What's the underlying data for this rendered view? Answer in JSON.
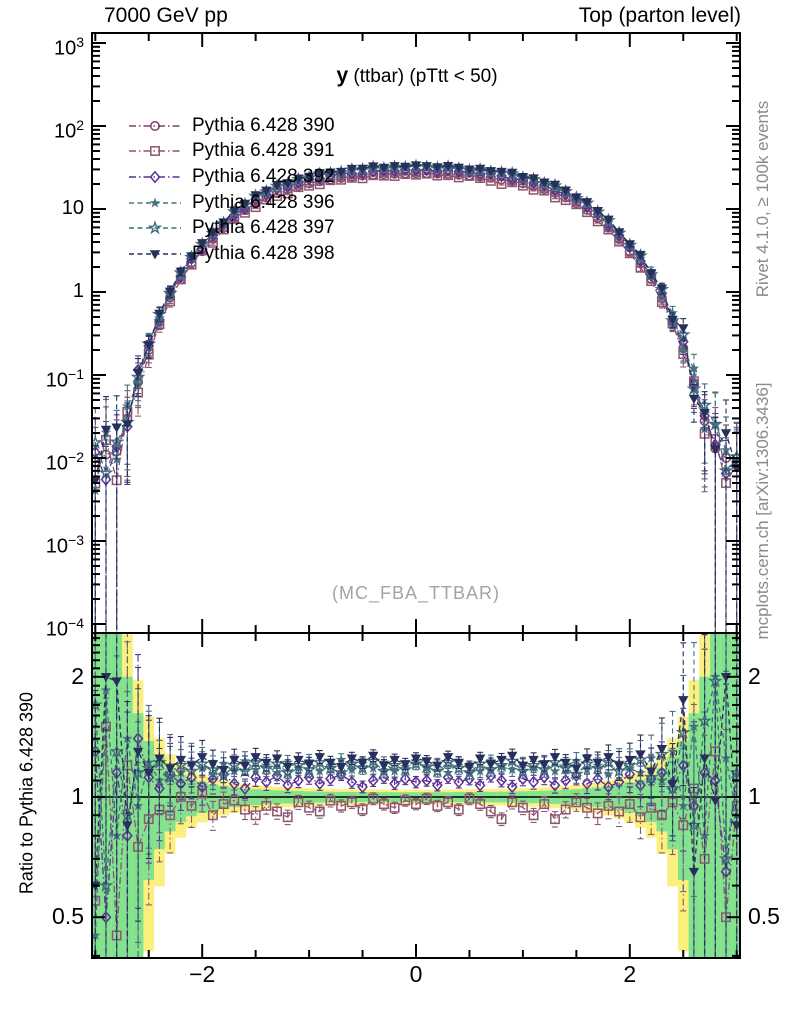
{
  "header": {
    "left": "7000 GeV pp",
    "right": "Top (parton level)"
  },
  "title": {
    "y": "y",
    "rest": " (ttbar)  (pTtt < 50)"
  },
  "watermark": "(MC_FBA_TTBAR)",
  "captions": {
    "rivet": "Rivet 4.1.0, ≥ 100k events",
    "mcplots": "mcplots.cern.ch [arXiv:1306.3436]"
  },
  "ratio_ylabel": "Ratio to Pythia 6.428 390",
  "colors": {
    "frame": "#000000",
    "band_yellow": "#fbf07d",
    "band_green": "#82e28d",
    "caption_gray": "#8a8a8a",
    "watermark_gray": "#a4a4a4"
  },
  "chart_data": {
    "type": "scatter",
    "title": "y (ttbar) (pTtt < 50)",
    "xlabel": "",
    "ylabel_main": "",
    "ylabel_ratio": "Ratio to Pythia 6.428 390",
    "legend_position": "top-left",
    "grid": false,
    "axes": {
      "x": {
        "lim": [
          -3.03,
          3.03
        ],
        "ticks": [
          {
            "v": -2,
            "label": "−2"
          },
          {
            "v": 0,
            "label": "0"
          },
          {
            "v": 2,
            "label": "2"
          }
        ],
        "minor_step": 0.5
      },
      "main_y": {
        "scale": "log",
        "lim_log10": [
          -4.11,
          3.13
        ],
        "ticks": [
          {
            "v": 1000,
            "mant": "10",
            "exp": "3"
          },
          {
            "v": 100,
            "mant": "10",
            "exp": "2"
          },
          {
            "v": 10,
            "mant": "10",
            "exp": ""
          },
          {
            "v": 1,
            "mant": "1",
            "exp": ""
          },
          {
            "v": 0.1,
            "mant": "10",
            "exp": "−1"
          },
          {
            "v": 0.01,
            "mant": "10",
            "exp": "−2"
          },
          {
            "v": 0.001,
            "mant": "10",
            "exp": "−3"
          },
          {
            "v": 0.0001,
            "mant": "10",
            "exp": "−4"
          }
        ]
      },
      "ratio_y": {
        "scale": "log",
        "lim": [
          0.395,
          2.57
        ],
        "ticks": [
          {
            "v": 2,
            "label": "2"
          },
          {
            "v": 1,
            "label": "1"
          },
          {
            "v": 0.5,
            "label": "0.5"
          }
        ],
        "minor": [
          0.4,
          0.6,
          0.7,
          0.8,
          0.9,
          1.1,
          1.2,
          1.3,
          1.4,
          1.5,
          1.6,
          1.7,
          1.8,
          1.9,
          2.1,
          2.2,
          2.3,
          2.4,
          2.5
        ]
      }
    },
    "bands": {
      "yellow_scale": 1.55
    },
    "x": [
      -3.0,
      -2.9,
      -2.8,
      -2.7,
      -2.6,
      -2.5,
      -2.4,
      -2.3,
      -2.2,
      -2.1,
      -2.0,
      -1.9,
      -1.8,
      -1.7,
      -1.6,
      -1.5,
      -1.4,
      -1.3,
      -1.2,
      -1.1,
      -1.0,
      -0.9,
      -0.8,
      -0.7,
      -0.6,
      -0.5,
      -0.4,
      -0.3,
      -0.2,
      -0.1,
      0.0,
      0.1,
      0.2,
      0.3,
      0.4,
      0.5,
      0.6,
      0.7,
      0.8,
      0.9,
      1.0,
      1.1,
      1.2,
      1.3,
      1.4,
      1.5,
      1.6,
      1.7,
      1.8,
      1.9,
      2.0,
      2.1,
      2.2,
      2.3,
      2.4,
      2.5,
      2.6,
      2.7,
      2.8,
      2.9,
      3.0
    ],
    "base_values": [
      0.009,
      0.011,
      0.012,
      0.03,
      0.082,
      0.2,
      0.44,
      0.86,
      1.42,
      2.25,
      3.1,
      4.35,
      5.9,
      7.75,
      9.7,
      11.7,
      13.7,
      15.6,
      17.3,
      18.9,
      20.3,
      21.6,
      22.7,
      23.7,
      24.5,
      25.2,
      25.8,
      26.3,
      26.6,
      26.85,
      27.0,
      26.9,
      26.65,
      26.35,
      25.85,
      25.25,
      24.55,
      23.75,
      22.75,
      21.65,
      20.35,
      18.95,
      17.35,
      15.65,
      13.75,
      11.75,
      9.75,
      7.8,
      5.95,
      4.4,
      3.05,
      2.2,
      1.44,
      0.84,
      0.43,
      0.21,
      0.08,
      0.028,
      0.013,
      0.01,
      0.009
    ],
    "rel_err": [
      1.6,
      1.5,
      1.4,
      0.8,
      0.48,
      0.3,
      0.2,
      0.15,
      0.11,
      0.09,
      0.077,
      0.064,
      0.055,
      0.048,
      0.043,
      0.039,
      0.036,
      0.034,
      0.032,
      0.031,
      0.03,
      0.029,
      0.028,
      0.027,
      0.027,
      0.026,
      0.026,
      0.026,
      0.025,
      0.025,
      0.025,
      0.025,
      0.025,
      0.026,
      0.026,
      0.026,
      0.027,
      0.027,
      0.028,
      0.029,
      0.03,
      0.031,
      0.032,
      0.034,
      0.036,
      0.039,
      0.043,
      0.048,
      0.055,
      0.064,
      0.077,
      0.09,
      0.11,
      0.15,
      0.2,
      0.3,
      0.48,
      0.8,
      1.4,
      1.5,
      1.6
    ],
    "band_green": [
      1.6,
      1.6,
      1.6,
      1.0,
      0.62,
      0.38,
      0.26,
      0.18,
      0.135,
      0.105,
      0.088,
      0.075,
      0.065,
      0.057,
      0.051,
      0.046,
      0.042,
      0.039,
      0.037,
      0.035,
      0.033,
      0.032,
      0.031,
      0.03,
      0.03,
      0.029,
      0.029,
      0.028,
      0.028,
      0.028,
      0.028,
      0.028,
      0.028,
      0.028,
      0.029,
      0.029,
      0.03,
      0.03,
      0.031,
      0.032,
      0.033,
      0.035,
      0.037,
      0.039,
      0.042,
      0.046,
      0.051,
      0.057,
      0.065,
      0.075,
      0.088,
      0.105,
      0.135,
      0.18,
      0.26,
      0.38,
      0.62,
      1.0,
      1.6,
      1.6,
      1.6
    ],
    "series": [
      {
        "name": "Pythia 6.428 390",
        "color": "#7c4268",
        "marker": "circle",
        "dash": "dashdot",
        "in_ratio": false,
        "ratio": [
          1,
          1,
          1,
          1,
          1,
          1,
          1,
          1,
          1,
          1,
          1,
          1,
          1,
          1,
          1,
          1,
          1,
          1,
          1,
          1,
          1,
          1,
          1,
          1,
          1,
          1,
          1,
          1,
          1,
          1,
          1,
          1,
          1,
          1,
          1,
          1,
          1,
          1,
          1,
          1,
          1,
          1,
          1,
          1,
          1,
          1,
          1,
          1,
          1,
          1,
          1,
          1,
          1,
          1,
          1,
          1,
          1,
          1,
          1,
          1,
          1
        ]
      },
      {
        "name": "Pythia 6.428 391",
        "color": "#8d5570",
        "marker": "square",
        "dash": "dashdot",
        "in_ratio": true,
        "ratio": [
          0.55,
          1.5,
          0.45,
          1.2,
          0.75,
          0.88,
          0.93,
          0.9,
          1.0,
          0.95,
          1.02,
          0.9,
          0.96,
          0.98,
          0.93,
          0.9,
          0.95,
          0.92,
          0.89,
          0.97,
          0.94,
          0.92,
          0.98,
          0.95,
          0.97,
          0.93,
          0.99,
          0.96,
          0.94,
          0.98,
          0.96,
          0.99,
          0.95,
          0.97,
          0.93,
          0.99,
          0.96,
          0.92,
          0.88,
          0.97,
          0.94,
          0.9,
          0.96,
          0.88,
          0.93,
          0.97,
          0.94,
          0.91,
          0.95,
          0.92,
          0.96,
          0.89,
          0.94,
          0.9,
          0.97,
          0.85,
          1.05,
          0.7,
          1.3,
          0.5,
          0.95
        ]
      },
      {
        "name": "Pythia 6.428 392",
        "color": "#5b2f95",
        "marker": "diamond",
        "dash": "dashdot",
        "in_ratio": true,
        "ratio": [
          1.3,
          0.5,
          1.15,
          0.8,
          1.4,
          1.12,
          1.05,
          1.14,
          1.08,
          1.12,
          1.06,
          1.11,
          1.14,
          1.08,
          1.05,
          1.12,
          1.09,
          1.13,
          1.07,
          1.1,
          1.12,
          1.08,
          1.11,
          1.14,
          1.09,
          1.06,
          1.1,
          1.12,
          1.08,
          1.11,
          1.09,
          1.1,
          1.07,
          1.12,
          1.09,
          1.11,
          1.07,
          1.13,
          1.1,
          1.06,
          1.11,
          1.09,
          1.12,
          1.07,
          1.1,
          1.13,
          1.08,
          1.11,
          1.06,
          1.09,
          1.14,
          1.07,
          1.11,
          1.15,
          1.05,
          1.2,
          0.95,
          1.15,
          1.1,
          0.65,
          1.12
        ]
      },
      {
        "name": "Pythia 6.428 396",
        "color": "#46717f",
        "marker": "star",
        "dash": "dashed",
        "in_ratio": true,
        "ratio": [
          0.45,
          1.85,
          0.8,
          1.4,
          0.95,
          1.22,
          1.1,
          1.2,
          1.15,
          1.22,
          1.18,
          1.14,
          1.21,
          1.16,
          1.23,
          1.17,
          1.2,
          1.15,
          1.22,
          1.18,
          1.23,
          1.16,
          1.2,
          1.24,
          1.17,
          1.21,
          1.18,
          1.22,
          1.16,
          1.19,
          1.23,
          1.18,
          1.21,
          1.15,
          1.22,
          1.18,
          1.16,
          1.23,
          1.19,
          1.17,
          1.21,
          1.18,
          1.22,
          1.16,
          1.2,
          1.23,
          1.17,
          1.2,
          1.14,
          1.22,
          1.18,
          1.15,
          1.25,
          1.1,
          1.3,
          0.95,
          1.5,
          0.8,
          2.0,
          1.25,
          0.9
        ]
      },
      {
        "name": "Pythia 6.428 397",
        "color": "#416d7c",
        "marker": "star-open",
        "dash": "dashed",
        "in_ratio": true,
        "ratio": [
          1.7,
          0.6,
          1.3,
          0.9,
          1.15,
          1.18,
          1.22,
          1.12,
          1.2,
          1.16,
          1.21,
          1.17,
          1.13,
          1.2,
          1.16,
          1.22,
          1.18,
          1.21,
          1.15,
          1.2,
          1.17,
          1.22,
          1.18,
          1.15,
          1.21,
          1.18,
          1.23,
          1.16,
          1.2,
          1.17,
          1.21,
          1.19,
          1.16,
          1.22,
          1.18,
          1.15,
          1.21,
          1.17,
          1.2,
          1.23,
          1.16,
          1.2,
          1.17,
          1.22,
          1.18,
          1.14,
          1.21,
          1.18,
          1.22,
          1.16,
          1.2,
          1.24,
          1.12,
          1.28,
          1.05,
          1.45,
          0.85,
          1.55,
          1.95,
          0.7,
          1.15
        ]
      },
      {
        "name": "Pythia 6.428 398",
        "color": "#27305c",
        "marker": "triangle-down",
        "dash": "dashed",
        "in_ratio": true,
        "ratio": [
          0.6,
          2.0,
          1.95,
          0.85,
          1.3,
          1.15,
          1.25,
          1.18,
          1.24,
          1.2,
          1.26,
          1.21,
          1.17,
          1.24,
          1.2,
          1.26,
          1.22,
          1.25,
          1.19,
          1.24,
          1.21,
          1.26,
          1.22,
          1.19,
          1.25,
          1.22,
          1.27,
          1.2,
          1.24,
          1.21,
          1.25,
          1.23,
          1.2,
          1.26,
          1.22,
          1.19,
          1.25,
          1.21,
          1.24,
          1.27,
          1.2,
          1.24,
          1.21,
          1.26,
          1.22,
          1.18,
          1.25,
          1.22,
          1.26,
          1.2,
          1.24,
          1.28,
          1.16,
          1.32,
          1.08,
          1.75,
          0.65,
          1.25,
          0.98,
          2.0,
          0.85
        ]
      }
    ]
  }
}
